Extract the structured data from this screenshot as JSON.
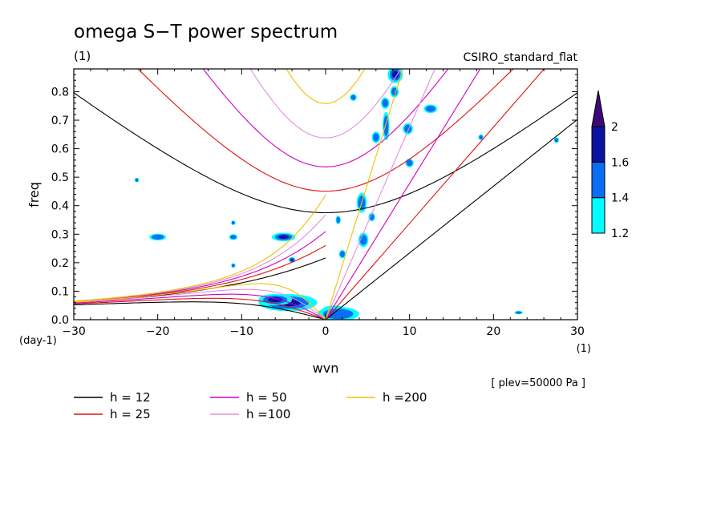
{
  "chart_data": {
    "type": "contour",
    "title": "omega S−T power spectrum",
    "subtitle_left": "(1)",
    "subtitle_right": "CSIRO_standard_flat",
    "xlabel": "wvn",
    "ylabel": "freq",
    "x_unit": "(1)",
    "y_unit": "(day-1)",
    "xlim": [
      -30,
      30
    ],
    "ylim": [
      0,
      0.88
    ],
    "x_ticks": [
      "-30",
      "-20",
      "-10",
      "0",
      "10",
      "20",
      "30"
    ],
    "y_ticks": [
      "0.0",
      "0.1",
      "0.2",
      "0.3",
      "0.4",
      "0.5",
      "0.6",
      "0.7",
      "0.8"
    ],
    "annotation": "[ plev=50000 Pa ]",
    "colorbar": {
      "levels": [
        "1.2",
        "1.4",
        "1.6",
        "2"
      ],
      "colors": [
        "#00ffff",
        "#0a6ef5",
        "#0a14a0",
        "#3c0a78"
      ]
    },
    "dispersion_curves": [
      {
        "label": "h = 12",
        "h": 12,
        "color": "#000000"
      },
      {
        "label": "h = 25",
        "h": 25,
        "color": "#e01010"
      },
      {
        "label": "h = 50",
        "h": 50,
        "color": "#d000c0"
      },
      {
        "label": "h =100",
        "h": 100,
        "color": "#e090e0"
      },
      {
        "label": "h =200",
        "h": 200,
        "color": "#f0c000"
      }
    ],
    "contour_blobs": [
      {
        "x": -4.5,
        "y": 0.06,
        "rx": 3.5,
        "ry": 0.03,
        "level": 3
      },
      {
        "x": -6,
        "y": 0.07,
        "rx": 2.0,
        "ry": 0.02,
        "level": 2
      },
      {
        "x": 1.0,
        "y": 0.03,
        "rx": 1.5,
        "ry": 0.02,
        "level": 3
      },
      {
        "x": 1.5,
        "y": 0.02,
        "rx": 2.5,
        "ry": 0.025,
        "level": 1
      },
      {
        "x": -5,
        "y": 0.29,
        "rx": 1.4,
        "ry": 0.015,
        "level": 2
      },
      {
        "x": -4,
        "y": 0.21,
        "rx": 0.4,
        "ry": 0.01,
        "level": 2
      },
      {
        "x": 8.3,
        "y": 0.86,
        "rx": 0.9,
        "ry": 0.03,
        "level": 2
      },
      {
        "x": 8.2,
        "y": 0.8,
        "rx": 0.5,
        "ry": 0.02,
        "level": 1
      },
      {
        "x": 7.1,
        "y": 0.76,
        "rx": 0.5,
        "ry": 0.02,
        "level": 1
      },
      {
        "x": 7.2,
        "y": 0.68,
        "rx": 0.4,
        "ry": 0.05,
        "level": 1
      },
      {
        "x": 9.8,
        "y": 0.67,
        "rx": 0.6,
        "ry": 0.02,
        "level": 1
      },
      {
        "x": 12.5,
        "y": 0.74,
        "rx": 0.8,
        "ry": 0.015,
        "level": 1
      },
      {
        "x": 6.0,
        "y": 0.64,
        "rx": 0.5,
        "ry": 0.02,
        "level": 1
      },
      {
        "x": 3.3,
        "y": 0.78,
        "rx": 0.4,
        "ry": 0.012,
        "level": 1
      },
      {
        "x": 10.0,
        "y": 0.55,
        "rx": 0.5,
        "ry": 0.015,
        "level": 1
      },
      {
        "x": 4.3,
        "y": 0.41,
        "rx": 0.6,
        "ry": 0.035,
        "level": 1
      },
      {
        "x": 5.5,
        "y": 0.36,
        "rx": 0.4,
        "ry": 0.015,
        "level": 1
      },
      {
        "x": 4.5,
        "y": 0.28,
        "rx": 0.6,
        "ry": 0.025,
        "level": 1
      },
      {
        "x": 2.0,
        "y": 0.23,
        "rx": 0.4,
        "ry": 0.015,
        "level": 1
      },
      {
        "x": 1.5,
        "y": 0.35,
        "rx": 0.3,
        "ry": 0.015,
        "level": 1
      },
      {
        "x": -20,
        "y": 0.29,
        "rx": 1.0,
        "ry": 0.012,
        "level": 1
      },
      {
        "x": -11,
        "y": 0.29,
        "rx": 0.5,
        "ry": 0.01,
        "level": 1
      },
      {
        "x": -11,
        "y": 0.34,
        "rx": 0.25,
        "ry": 0.008,
        "level": 1
      },
      {
        "x": -22.5,
        "y": 0.49,
        "rx": 0.25,
        "ry": 0.008,
        "level": 1
      },
      {
        "x": -11,
        "y": 0.19,
        "rx": 0.25,
        "ry": 0.008,
        "level": 1
      },
      {
        "x": 23,
        "y": 0.025,
        "rx": 0.5,
        "ry": 0.006,
        "level": 1
      },
      {
        "x": 18.5,
        "y": 0.64,
        "rx": 0.3,
        "ry": 0.01,
        "level": 1
      },
      {
        "x": 27.5,
        "y": 0.63,
        "rx": 0.3,
        "ry": 0.01,
        "level": 1
      }
    ]
  }
}
